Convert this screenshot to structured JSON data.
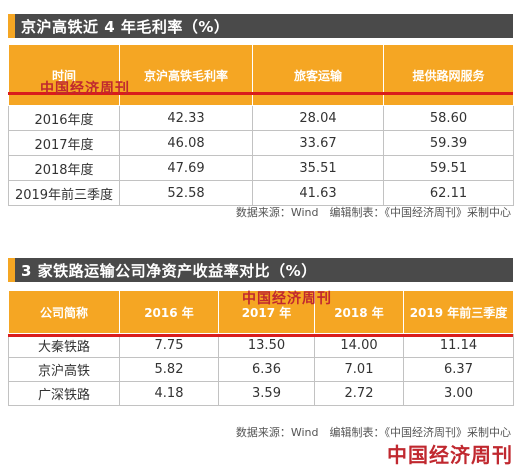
{
  "table1": {
    "title": "京沪高铁近 4 年毛利率（%）",
    "headers": [
      "时间",
      "京沪高铁毛利率",
      "旅客运输",
      "提供路网服务"
    ],
    "rows": [
      [
        "2016年度",
        "42.33",
        "28.04",
        "58.60"
      ],
      [
        "2017年度",
        "46.08",
        "33.67",
        "59.39"
      ],
      [
        "2018年度",
        "47.69",
        "35.51",
        "59.51"
      ],
      [
        "2019年前三季度",
        "52.58",
        "41.63",
        "62.11"
      ]
    ],
    "source": "数据来源：Wind　编辑制表：《中国经济周刊》采制中心"
  },
  "table2": {
    "title": "3 家铁路运输公司净资产收益率对比（%）",
    "headers": [
      "公司简称",
      "2016 年",
      "2017 年",
      "2018 年",
      "2019 年前三季度"
    ],
    "rows": [
      [
        "大秦铁路",
        "7.75",
        "13.50",
        "14.00",
        "11.14"
      ],
      [
        "京沪高铁",
        "5.82",
        "6.36",
        "7.01",
        "6.37"
      ],
      [
        "广深铁路",
        "4.18",
        "3.59",
        "2.72",
        "3.00"
      ]
    ],
    "source": "数据来源：Wind　编辑制表：《中国经济周刊》采制中心"
  },
  "watermark": "中国经济周刊",
  "colors": {
    "header": "#f5a623",
    "title_bar": "#4a4a4a",
    "red_line": "#d91c1c",
    "watermark": "#c0282f"
  }
}
